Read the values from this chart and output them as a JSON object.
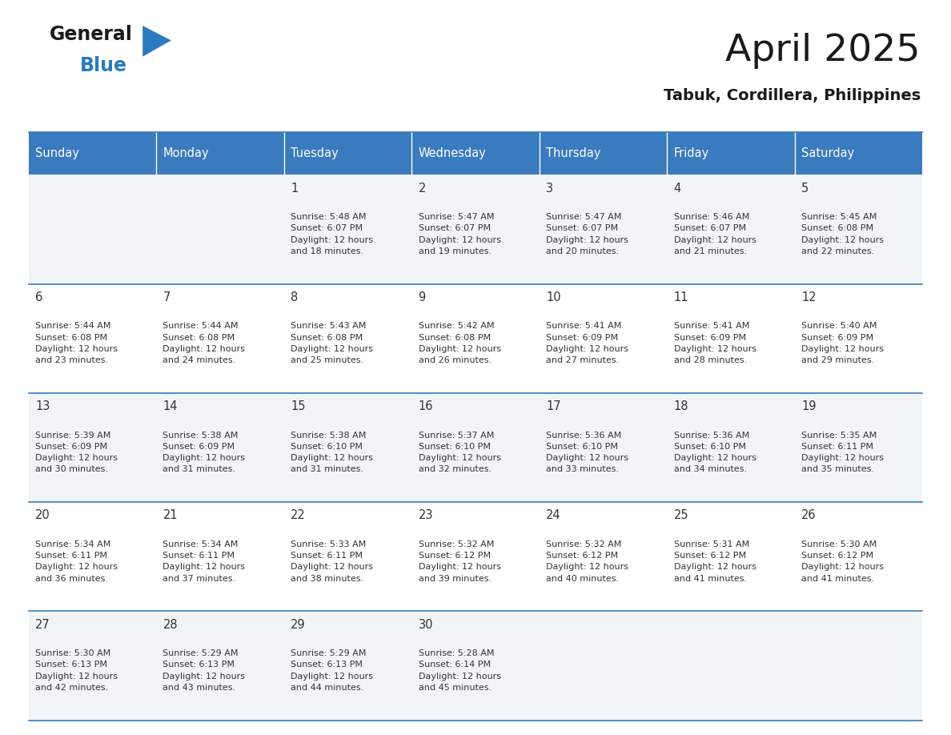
{
  "title": "April 2025",
  "subtitle": "Tabuk, Cordillera, Philippines",
  "header_bg_color": "#3a7abf",
  "header_text_color": "#ffffff",
  "row_bg_colors": [
    "#f2f5f8",
    "#ffffff",
    "#f2f5f8",
    "#ffffff",
    "#f2f5f8"
  ],
  "day_headers": [
    "Sunday",
    "Monday",
    "Tuesday",
    "Wednesday",
    "Thursday",
    "Friday",
    "Saturday"
  ],
  "title_color": "#1a1a1a",
  "subtitle_color": "#1a1a1a",
  "text_color": "#333333",
  "line_color": "#3a7abf",
  "logo_general_color": "#1a1a1a",
  "logo_blue_color": "#2b7abf",
  "logo_triangle_color": "#2b7abf",
  "calendar_data": [
    [
      {
        "day": "",
        "sunrise": "",
        "sunset": "",
        "daylight_min": 0
      },
      {
        "day": "",
        "sunrise": "",
        "sunset": "",
        "daylight_min": 0
      },
      {
        "day": "1",
        "sunrise": "5:48 AM",
        "sunset": "6:07 PM",
        "daylight_min": 18
      },
      {
        "day": "2",
        "sunrise": "5:47 AM",
        "sunset": "6:07 PM",
        "daylight_min": 19
      },
      {
        "day": "3",
        "sunrise": "5:47 AM",
        "sunset": "6:07 PM",
        "daylight_min": 20
      },
      {
        "day": "4",
        "sunrise": "5:46 AM",
        "sunset": "6:07 PM",
        "daylight_min": 21
      },
      {
        "day": "5",
        "sunrise": "5:45 AM",
        "sunset": "6:08 PM",
        "daylight_min": 22
      }
    ],
    [
      {
        "day": "6",
        "sunrise": "5:44 AM",
        "sunset": "6:08 PM",
        "daylight_min": 23
      },
      {
        "day": "7",
        "sunrise": "5:44 AM",
        "sunset": "6:08 PM",
        "daylight_min": 24
      },
      {
        "day": "8",
        "sunrise": "5:43 AM",
        "sunset": "6:08 PM",
        "daylight_min": 25
      },
      {
        "day": "9",
        "sunrise": "5:42 AM",
        "sunset": "6:08 PM",
        "daylight_min": 26
      },
      {
        "day": "10",
        "sunrise": "5:41 AM",
        "sunset": "6:09 PM",
        "daylight_min": 27
      },
      {
        "day": "11",
        "sunrise": "5:41 AM",
        "sunset": "6:09 PM",
        "daylight_min": 28
      },
      {
        "day": "12",
        "sunrise": "5:40 AM",
        "sunset": "6:09 PM",
        "daylight_min": 29
      }
    ],
    [
      {
        "day": "13",
        "sunrise": "5:39 AM",
        "sunset": "6:09 PM",
        "daylight_min": 30
      },
      {
        "day": "14",
        "sunrise": "5:38 AM",
        "sunset": "6:09 PM",
        "daylight_min": 31
      },
      {
        "day": "15",
        "sunrise": "5:38 AM",
        "sunset": "6:10 PM",
        "daylight_min": 31
      },
      {
        "day": "16",
        "sunrise": "5:37 AM",
        "sunset": "6:10 PM",
        "daylight_min": 32
      },
      {
        "day": "17",
        "sunrise": "5:36 AM",
        "sunset": "6:10 PM",
        "daylight_min": 33
      },
      {
        "day": "18",
        "sunrise": "5:36 AM",
        "sunset": "6:10 PM",
        "daylight_min": 34
      },
      {
        "day": "19",
        "sunrise": "5:35 AM",
        "sunset": "6:11 PM",
        "daylight_min": 35
      }
    ],
    [
      {
        "day": "20",
        "sunrise": "5:34 AM",
        "sunset": "6:11 PM",
        "daylight_min": 36
      },
      {
        "day": "21",
        "sunrise": "5:34 AM",
        "sunset": "6:11 PM",
        "daylight_min": 37
      },
      {
        "day": "22",
        "sunrise": "5:33 AM",
        "sunset": "6:11 PM",
        "daylight_min": 38
      },
      {
        "day": "23",
        "sunrise": "5:32 AM",
        "sunset": "6:12 PM",
        "daylight_min": 39
      },
      {
        "day": "24",
        "sunrise": "5:32 AM",
        "sunset": "6:12 PM",
        "daylight_min": 40
      },
      {
        "day": "25",
        "sunrise": "5:31 AM",
        "sunset": "6:12 PM",
        "daylight_min": 41
      },
      {
        "day": "26",
        "sunrise": "5:30 AM",
        "sunset": "6:12 PM",
        "daylight_min": 41
      }
    ],
    [
      {
        "day": "27",
        "sunrise": "5:30 AM",
        "sunset": "6:13 PM",
        "daylight_min": 42
      },
      {
        "day": "28",
        "sunrise": "5:29 AM",
        "sunset": "6:13 PM",
        "daylight_min": 43
      },
      {
        "day": "29",
        "sunrise": "5:29 AM",
        "sunset": "6:13 PM",
        "daylight_min": 44
      },
      {
        "day": "30",
        "sunrise": "5:28 AM",
        "sunset": "6:14 PM",
        "daylight_min": 45
      },
      {
        "day": "",
        "sunrise": "",
        "sunset": "",
        "daylight_min": 0
      },
      {
        "day": "",
        "sunrise": "",
        "sunset": "",
        "daylight_min": 0
      },
      {
        "day": "",
        "sunrise": "",
        "sunset": "",
        "daylight_min": 0
      }
    ]
  ]
}
